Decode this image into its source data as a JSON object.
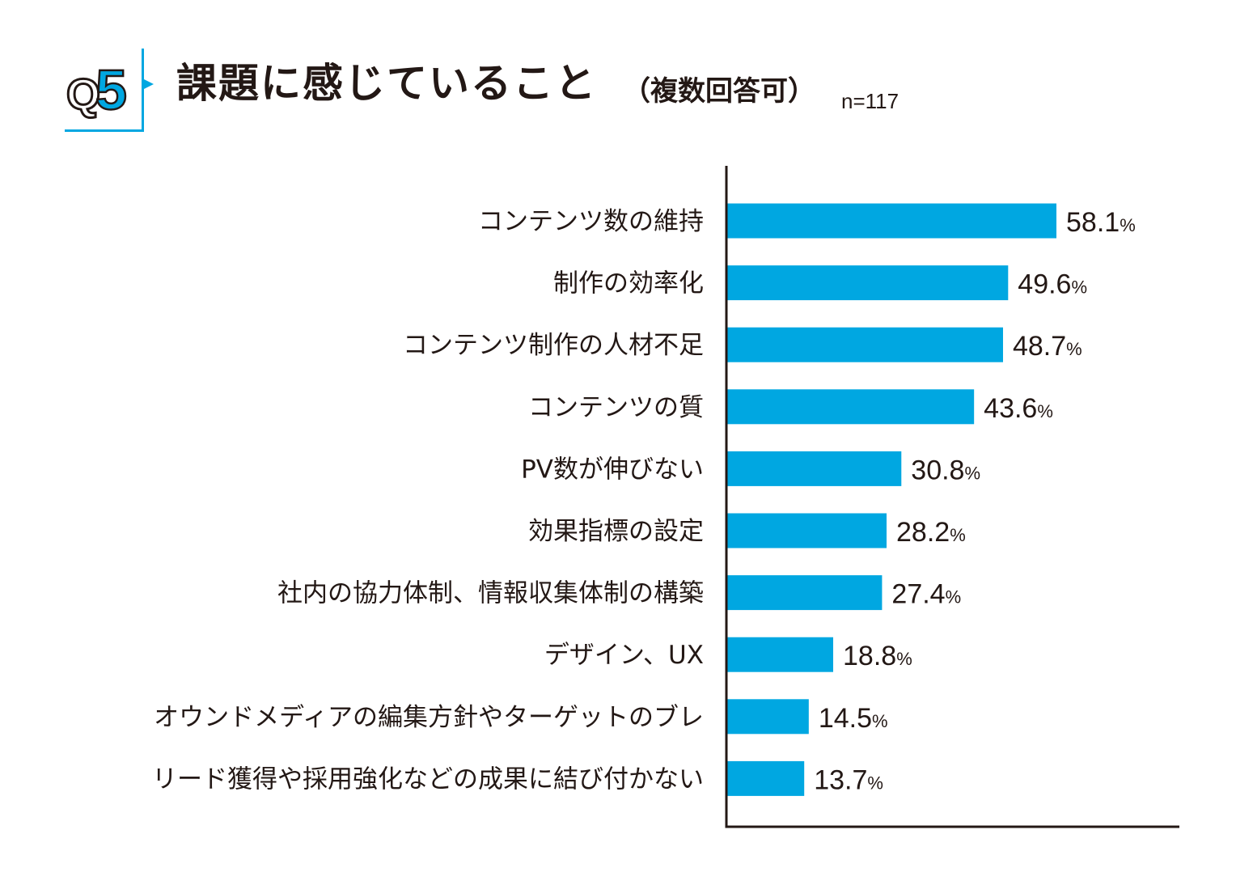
{
  "header": {
    "q_prefix": "Q",
    "q_number": "5",
    "title": "課題に感じていること",
    "subtitle": "（複数回答可）",
    "n_label": "n=117"
  },
  "colors": {
    "bar": "#00a7e1",
    "text": "#231815",
    "axis": "#231815",
    "accent": "#00a7e1"
  },
  "chart_data": {
    "type": "bar",
    "orientation": "horizontal",
    "title": "課題に感じていること（複数回答可）",
    "n": "n=117",
    "categories": [
      "コンテンツ数の維持",
      "制作の効率化",
      "コンテンツ制作の人材不足",
      "コンテンツの質",
      "PV数が伸びない",
      "効果指標の設定",
      "社内の協力体制、情報収集体制の構築",
      "デザイン、UX",
      "オウンドメディアの編集方針やターゲットのブレ",
      "リード獲得や採用強化などの成果に結び付かない"
    ],
    "values": [
      58.1,
      49.6,
      48.7,
      43.6,
      30.8,
      28.2,
      27.4,
      18.8,
      14.5,
      13.7
    ],
    "value_labels": [
      "58.1",
      "49.6",
      "48.7",
      "43.6",
      "30.8",
      "28.2",
      "27.4",
      "18.8",
      "14.5",
      "13.7"
    ],
    "unit": "%",
    "xlim": [
      0,
      80
    ],
    "xlabel": "",
    "ylabel": "",
    "grid": false
  }
}
